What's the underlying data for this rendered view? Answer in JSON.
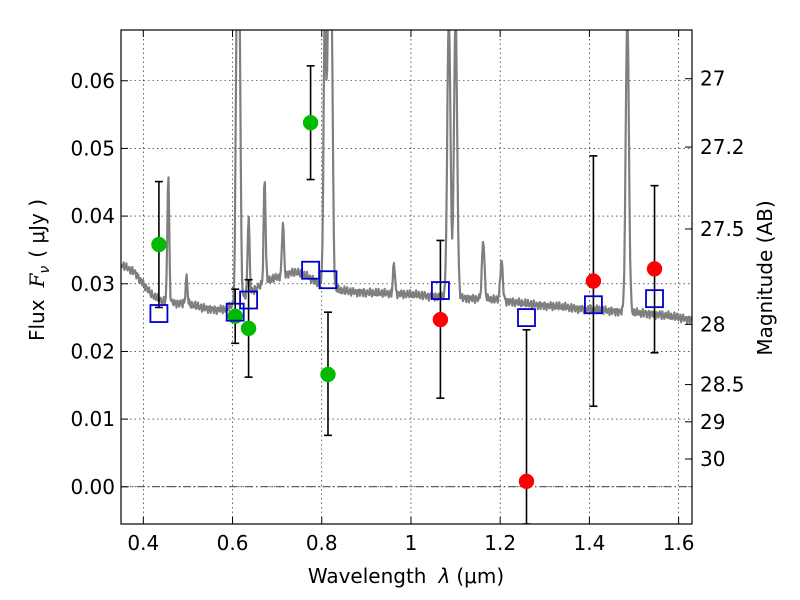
{
  "chart_data": {
    "type": "scatter",
    "xlabel": "Wavelength",
    "xlabel_symbol": "λ",
    "xlabel_unit": "(μm)",
    "ylabel": "Flux",
    "ylabel_symbol": "F",
    "ylabel_subscript": "ν",
    "ylabel_unit": "( μJy )",
    "y2label": "Magnitude (AB)",
    "xlim": [
      0.35,
      1.63
    ],
    "ylim": [
      -0.0055,
      0.0675
    ],
    "grid": true,
    "x_ticks": [
      0.4,
      0.6,
      0.8,
      1.0,
      1.2,
      1.4,
      1.6
    ],
    "x_tick_labels": [
      "0.4",
      "0.6",
      "0.8",
      "1",
      "1.2",
      "1.4",
      "1.6"
    ],
    "y_ticks": [
      0.0,
      0.01,
      0.02,
      0.03,
      0.04,
      0.05,
      0.06
    ],
    "y_tick_labels": [
      "0.00",
      "0.01",
      "0.02",
      "0.03",
      "0.04",
      "0.05",
      "0.06"
    ],
    "y2_ticks": [
      {
        "label": "27",
        "flux": 0.0603
      },
      {
        "label": "27.2",
        "flux": 0.0502
      },
      {
        "label": "27.5",
        "flux": 0.0381
      },
      {
        "label": "28",
        "flux": 0.024
      },
      {
        "label": "28.5",
        "flux": 0.0151
      },
      {
        "label": "29",
        "flux": 0.0096
      },
      {
        "label": "30",
        "flux": 0.0041
      }
    ],
    "colors": {
      "green": "#00bb00",
      "red": "#ff0000",
      "blue": "#0000cc",
      "spectrum": "#7f7f7f",
      "errorbar": "#000000"
    },
    "series": [
      {
        "color": "green",
        "marker": "circle",
        "points": [
          {
            "x": 0.435,
            "y": 0.0358,
            "ylow": 0.0265,
            "yhigh": 0.0451
          },
          {
            "x": 0.606,
            "y": 0.0252,
            "ylow": 0.0212,
            "yhigh": 0.0292
          },
          {
            "x": 0.636,
            "y": 0.0234,
            "ylow": 0.0162,
            "yhigh": 0.0306
          },
          {
            "x": 0.775,
            "y": 0.0538,
            "ylow": 0.0454,
            "yhigh": 0.0622
          },
          {
            "x": 0.814,
            "y": 0.0166,
            "ylow": 0.0076,
            "yhigh": 0.0258
          }
        ]
      },
      {
        "color": "red",
        "marker": "circle",
        "points": [
          {
            "x": 1.066,
            "y": 0.0247,
            "ylow": 0.0131,
            "yhigh": 0.0364
          },
          {
            "x": 1.259,
            "y": 0.0008,
            "ylow": -0.0055,
            "yhigh": 0.0232
          },
          {
            "x": 1.409,
            "y": 0.0304,
            "ylow": 0.0119,
            "yhigh": 0.0489
          },
          {
            "x": 1.546,
            "y": 0.0322,
            "ylow": 0.0198,
            "yhigh": 0.0445
          }
        ]
      },
      {
        "color": "blue",
        "marker": "open-square",
        "points": [
          {
            "x": 0.435,
            "y": 0.0256
          },
          {
            "x": 0.606,
            "y": 0.0258
          },
          {
            "x": 0.636,
            "y": 0.0276
          },
          {
            "x": 0.775,
            "y": 0.032
          },
          {
            "x": 0.814,
            "y": 0.0306
          },
          {
            "x": 1.066,
            "y": 0.029
          },
          {
            "x": 1.259,
            "y": 0.025
          },
          {
            "x": 1.409,
            "y": 0.0269
          },
          {
            "x": 1.546,
            "y": 0.0278
          }
        ]
      }
    ],
    "spectrum": {
      "color": "spectrum",
      "continuum": [
        [
          0.35,
          0.0328
        ],
        [
          0.38,
          0.0318
        ],
        [
          0.4,
          0.03
        ],
        [
          0.42,
          0.0283
        ],
        [
          0.44,
          0.0275
        ],
        [
          0.47,
          0.0272
        ],
        [
          0.5,
          0.027
        ],
        [
          0.53,
          0.0265
        ],
        [
          0.56,
          0.0262
        ],
        [
          0.585,
          0.0262
        ],
        [
          0.6,
          0.0268
        ],
        [
          0.62,
          0.0278
        ],
        [
          0.65,
          0.0292
        ],
        [
          0.68,
          0.0305
        ],
        [
          0.71,
          0.0312
        ],
        [
          0.74,
          0.0318
        ],
        [
          0.77,
          0.031
        ],
        [
          0.8,
          0.0298
        ],
        [
          0.84,
          0.029
        ],
        [
          0.88,
          0.0288
        ],
        [
          0.92,
          0.0286
        ],
        [
          0.96,
          0.0286
        ],
        [
          1.0,
          0.0284
        ],
        [
          1.04,
          0.0282
        ],
        [
          1.08,
          0.0281
        ],
        [
          1.12,
          0.0279
        ],
        [
          1.16,
          0.0278
        ],
        [
          1.2,
          0.0276
        ],
        [
          1.25,
          0.0271
        ],
        [
          1.3,
          0.0268
        ],
        [
          1.35,
          0.0265
        ],
        [
          1.4,
          0.0262
        ],
        [
          1.45,
          0.026
        ],
        [
          1.5,
          0.0257
        ],
        [
          1.55,
          0.0255
        ],
        [
          1.6,
          0.025
        ],
        [
          1.63,
          0.0247
        ]
      ],
      "lines": [
        {
          "x": 0.456,
          "peak": 0.0461,
          "width": 0.003
        },
        {
          "x": 0.497,
          "peak": 0.031,
          "width": 0.003
        },
        {
          "x": 0.61,
          "peak": 0.07,
          "width": 0.004
        },
        {
          "x": 0.615,
          "peak": 0.07,
          "width": 0.004
        },
        {
          "x": 0.636,
          "peak": 0.04,
          "width": 0.003
        },
        {
          "x": 0.672,
          "peak": 0.0457,
          "width": 0.003
        },
        {
          "x": 0.713,
          "peak": 0.0392,
          "width": 0.003
        },
        {
          "x": 0.807,
          "peak": 0.07,
          "width": 0.004
        },
        {
          "x": 0.815,
          "peak": 0.07,
          "width": 0.004
        },
        {
          "x": 0.822,
          "peak": 0.07,
          "width": 0.004
        },
        {
          "x": 0.962,
          "peak": 0.0332,
          "width": 0.003
        },
        {
          "x": 1.085,
          "peak": 0.07,
          "width": 0.005
        },
        {
          "x": 1.1,
          "peak": 0.07,
          "width": 0.005
        },
        {
          "x": 1.162,
          "peak": 0.0364,
          "width": 0.004
        },
        {
          "x": 1.203,
          "peak": 0.0334,
          "width": 0.004
        },
        {
          "x": 1.485,
          "peak": 0.07,
          "width": 0.005
        }
      ]
    }
  }
}
